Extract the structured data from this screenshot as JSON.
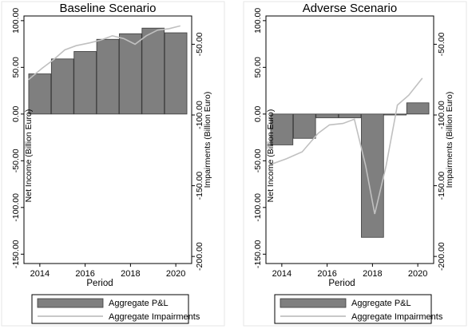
{
  "chart_data": [
    {
      "type": "bar+line",
      "title": "Baseline Scenario",
      "xlabel": "Period",
      "ylabel_left": "Net Income (Billion Euro)",
      "ylabel_right": "Impairments (Billion Euro)",
      "x": [
        2014,
        2015,
        2016,
        2017,
        2018,
        2019,
        2020
      ],
      "x_ticks": [
        "2014",
        "2016",
        "2018",
        "2020"
      ],
      "xlim": [
        2013.3,
        2020.7
      ],
      "ylim_left": [
        -160,
        105
      ],
      "ylim_right": [
        -205,
        -30
      ],
      "y_ticks_left": [
        "100.00",
        "50.00",
        "0.00",
        "-50.00",
        "-100.00",
        "-150.00"
      ],
      "y_ticks_right": [
        "-50.00",
        "-100.00",
        "-150.00",
        "-200.00"
      ],
      "bar_series": {
        "name": "Aggregate P&L",
        "color": "#7f7f7f",
        "values": [
          43,
          59,
          67,
          80,
          86,
          92,
          87
        ]
      },
      "line_series": {
        "name": "Aggregate Impairments",
        "color": "#c0c0c0",
        "x": [
          2013.5,
          2014.1,
          2014.6,
          2015.1,
          2015.6,
          2016.2,
          2016.7,
          2017.2,
          2017.7,
          2018.2,
          2018.7,
          2019.2,
          2019.7,
          2020.2
        ],
        "values": [
          -75,
          -67,
          -61,
          -54,
          -51,
          -49,
          -47,
          -44,
          -46,
          -50,
          -44,
          -40,
          -39,
          -37
        ]
      },
      "legend": [
        "Aggregate P&L",
        "Aggregate Impairments"
      ],
      "legend_position": "bottom",
      "grid": false
    },
    {
      "type": "bar+line",
      "title": "Adverse Scenario",
      "xlabel": "Period",
      "ylabel_left": "Net Income (Billion Euro)",
      "ylabel_right": "Impairments (Billion Euro)",
      "x": [
        2014,
        2015,
        2016,
        2017,
        2018,
        2019,
        2020
      ],
      "x_ticks": [
        "2014",
        "2016",
        "2018",
        "2020"
      ],
      "xlim": [
        2013.3,
        2020.7
      ],
      "ylim_left": [
        -160,
        105
      ],
      "ylim_right": [
        -205,
        -30
      ],
      "y_ticks_left": [
        "100.00",
        "50.00",
        "0.00",
        "-50.00",
        "-100.00",
        "-150.00"
      ],
      "y_ticks_right": [
        "-50.00",
        "-100.00",
        "-150.00",
        "-200.00"
      ],
      "bar_series": {
        "name": "Aggregate P&L",
        "color": "#7f7f7f",
        "values": [
          -33,
          -26,
          -4,
          -4,
          -132,
          -1,
          12
        ]
      },
      "line_series": {
        "name": "Aggregate Impairments",
        "color": "#c0c0c0",
        "x": [
          2013.5,
          2014.2,
          2014.9,
          2015.6,
          2016.1,
          2016.7,
          2017.2,
          2017.7,
          2018.1,
          2018.6,
          2019.1,
          2019.6,
          2020.2
        ],
        "values": [
          -135,
          -131,
          -126,
          -113,
          -107,
          -106,
          -103,
          -136,
          -170,
          -136,
          -93,
          -86,
          -74
        ]
      },
      "legend": [
        "Aggregate P&L",
        "Aggregate Impairments"
      ],
      "legend_position": "bottom",
      "grid": false
    }
  ]
}
